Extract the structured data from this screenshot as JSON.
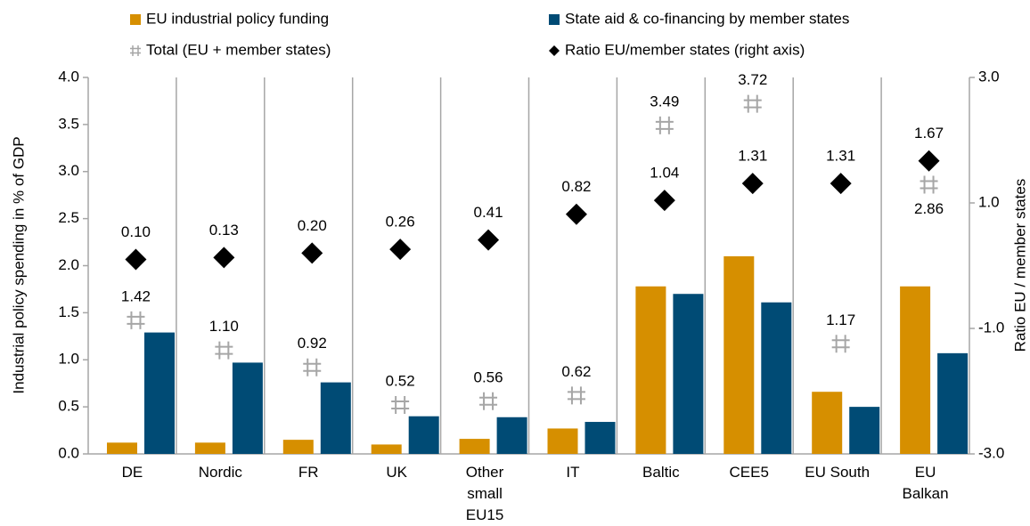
{
  "chart_data": {
    "type": "bar",
    "categories": [
      "DE",
      "Nordic",
      "FR",
      "UK",
      "Other\nsmall\nEU15",
      "IT",
      "Baltic",
      "CEE5",
      "EU South",
      "EU\nBalkan"
    ],
    "series": [
      {
        "name": "EU industrial policy funding",
        "type": "bar",
        "color": "#d68f00",
        "values": [
          0.12,
          0.12,
          0.15,
          0.1,
          0.16,
          0.27,
          1.78,
          2.1,
          0.66,
          1.78
        ]
      },
      {
        "name": "State aid & co-financing by member states",
        "type": "bar",
        "color": "#004b75",
        "values": [
          1.29,
          0.97,
          0.76,
          0.4,
          0.39,
          0.34,
          1.7,
          1.61,
          0.5,
          1.07
        ]
      },
      {
        "name": "Total (EU + member states)",
        "type": "cross",
        "color": "#a6a6a6",
        "values": [
          1.42,
          1.1,
          0.92,
          0.52,
          0.56,
          0.62,
          3.49,
          3.72,
          1.17,
          2.86
        ],
        "value_labels": [
          "1.42",
          "1.10",
          "0.92",
          "0.52",
          "0.56",
          "0.62",
          "3.49",
          "3.72",
          "1.17",
          "2.86"
        ]
      },
      {
        "name": "Ratio EU/member states (right axis)",
        "type": "diamond",
        "color": "#000000",
        "axis": "y2",
        "values": [
          0.1,
          0.13,
          0.2,
          0.26,
          0.41,
          0.82,
          1.04,
          1.31,
          1.31,
          1.67
        ],
        "value_labels": [
          "0.10",
          "0.13",
          "0.20",
          "0.26",
          "0.41",
          "0.82",
          "1.04",
          "1.31",
          "1.31",
          "1.67"
        ]
      }
    ],
    "y_label": "Industrial policy spending in % of GDP",
    "y2_label": "Ratio EU / member states",
    "ylim": [
      0,
      4
    ],
    "yticks": [
      {
        "value": 0,
        "label": "0.0"
      },
      {
        "value": 0.5,
        "label": "0.5"
      },
      {
        "value": 1,
        "label": "1.0"
      },
      {
        "value": 1.5,
        "label": "1.5"
      },
      {
        "value": 2,
        "label": "2.0"
      },
      {
        "value": 2.5,
        "label": "2.5"
      },
      {
        "value": 3,
        "label": "3.0"
      },
      {
        "value": 3.5,
        "label": "3.5"
      },
      {
        "value": 4,
        "label": "4.0"
      }
    ],
    "y2lim": [
      -3,
      3
    ],
    "y2ticks": [
      {
        "value": -3,
        "label": "-3.0"
      },
      {
        "value": -1,
        "label": "-1.0"
      },
      {
        "value": 1,
        "label": "1.0"
      },
      {
        "value": 3,
        "label": "3.0"
      }
    ],
    "legend": "top"
  }
}
